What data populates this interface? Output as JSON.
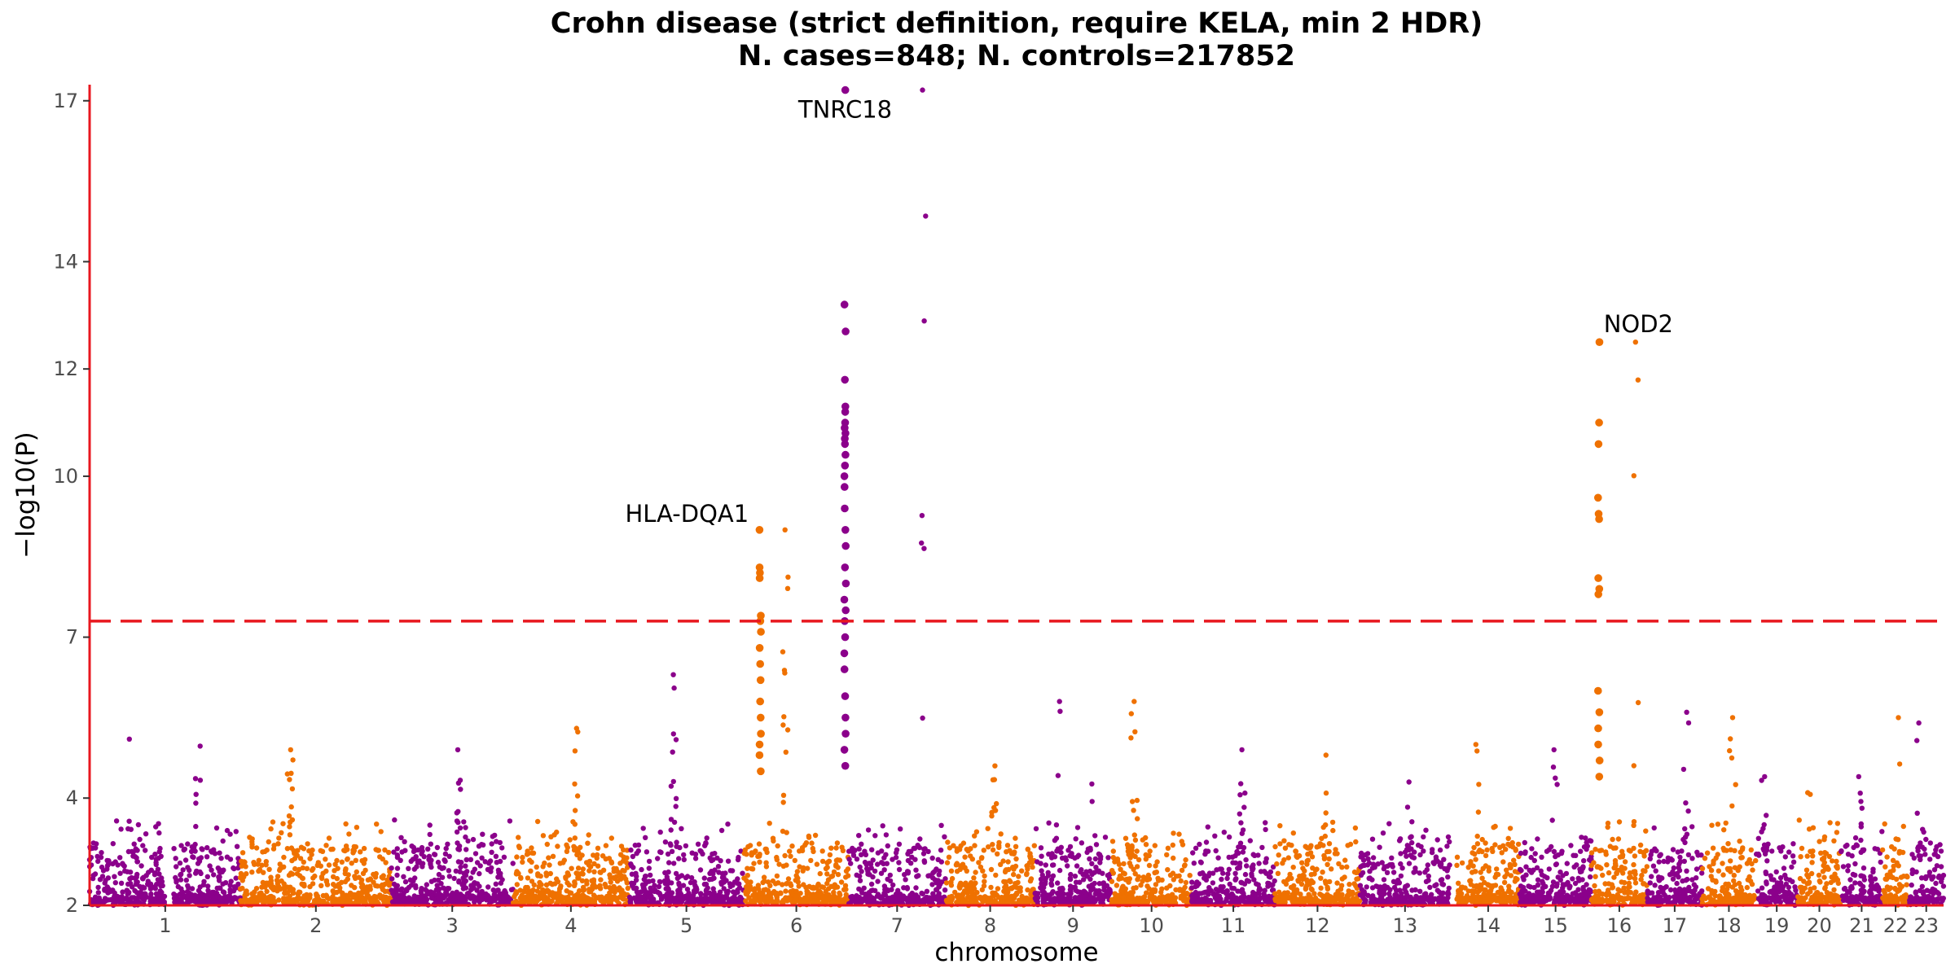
{
  "chart_data": {
    "type": "scatter",
    "subtype": "manhattan",
    "title": "Crohn disease (strict definition, require KELA, min 2 HDR)",
    "subtitle": "N. cases=848; N. controls=217852",
    "xlabel": "chromosome",
    "ylabel": "−log10(P)",
    "ylim": [
      2,
      17.3
    ],
    "yticks": [
      2,
      4,
      7,
      10,
      12,
      14,
      17
    ],
    "significance_threshold": 7.3,
    "threshold_color": "#e8171f",
    "colors": {
      "odd": "#8b008b",
      "even": "#ef7100",
      "axis": "#e8171f"
    },
    "chromosomes": [
      {
        "label": "1",
        "max": 5.1
      },
      {
        "label": "2",
        "max": 4.9
      },
      {
        "label": "3",
        "max": 4.9
      },
      {
        "label": "4",
        "max": 5.3
      },
      {
        "label": "5",
        "max": 6.3
      },
      {
        "label": "6",
        "max": 9.0
      },
      {
        "label": "7",
        "max": 17.2
      },
      {
        "label": "8",
        "max": 4.6
      },
      {
        "label": "9",
        "max": 5.8
      },
      {
        "label": "10",
        "max": 5.8
      },
      {
        "label": "11",
        "max": 4.9
      },
      {
        "label": "12",
        "max": 4.8
      },
      {
        "label": "13",
        "max": 4.3
      },
      {
        "label": "14",
        "max": 5.0
      },
      {
        "label": "15",
        "max": 4.9
      },
      {
        "label": "16",
        "max": 12.5
      },
      {
        "label": "17",
        "max": 5.6
      },
      {
        "label": "18",
        "max": 5.5
      },
      {
        "label": "19",
        "max": 4.4
      },
      {
        "label": "20",
        "max": 4.1
      },
      {
        "label": "21",
        "max": 4.4
      },
      {
        "label": "22",
        "max": 5.5
      },
      {
        "label": "23",
        "max": 5.4
      }
    ],
    "peaks": [
      {
        "chrom": "6",
        "label": "HLA-DQA1",
        "values": [
          9.0,
          8.3,
          8.2,
          8.1,
          7.4,
          7.3,
          7.1,
          6.8,
          6.5,
          6.2,
          5.8,
          5.5,
          5.2,
          5.0,
          4.8,
          4.5
        ]
      },
      {
        "chrom": "7",
        "label": "TNRC18",
        "values": [
          17.2,
          13.2,
          12.7,
          11.8,
          11.3,
          11.2,
          11.0,
          10.9,
          10.8,
          10.7,
          10.6,
          10.4,
          10.2,
          10.0,
          9.8,
          9.4,
          9.0,
          8.7,
          8.3,
          8.0,
          7.7,
          7.5,
          7.3,
          7.0,
          6.7,
          6.4,
          5.9,
          5.5,
          5.2,
          4.9,
          4.6
        ]
      },
      {
        "chrom": "16",
        "label": "NOD2",
        "values": [
          12.5,
          11.0,
          10.6,
          9.6,
          9.3,
          9.2,
          8.1,
          7.9,
          7.8,
          6.0,
          5.6,
          5.3,
          5.0,
          4.7,
          4.4
        ]
      }
    ]
  }
}
